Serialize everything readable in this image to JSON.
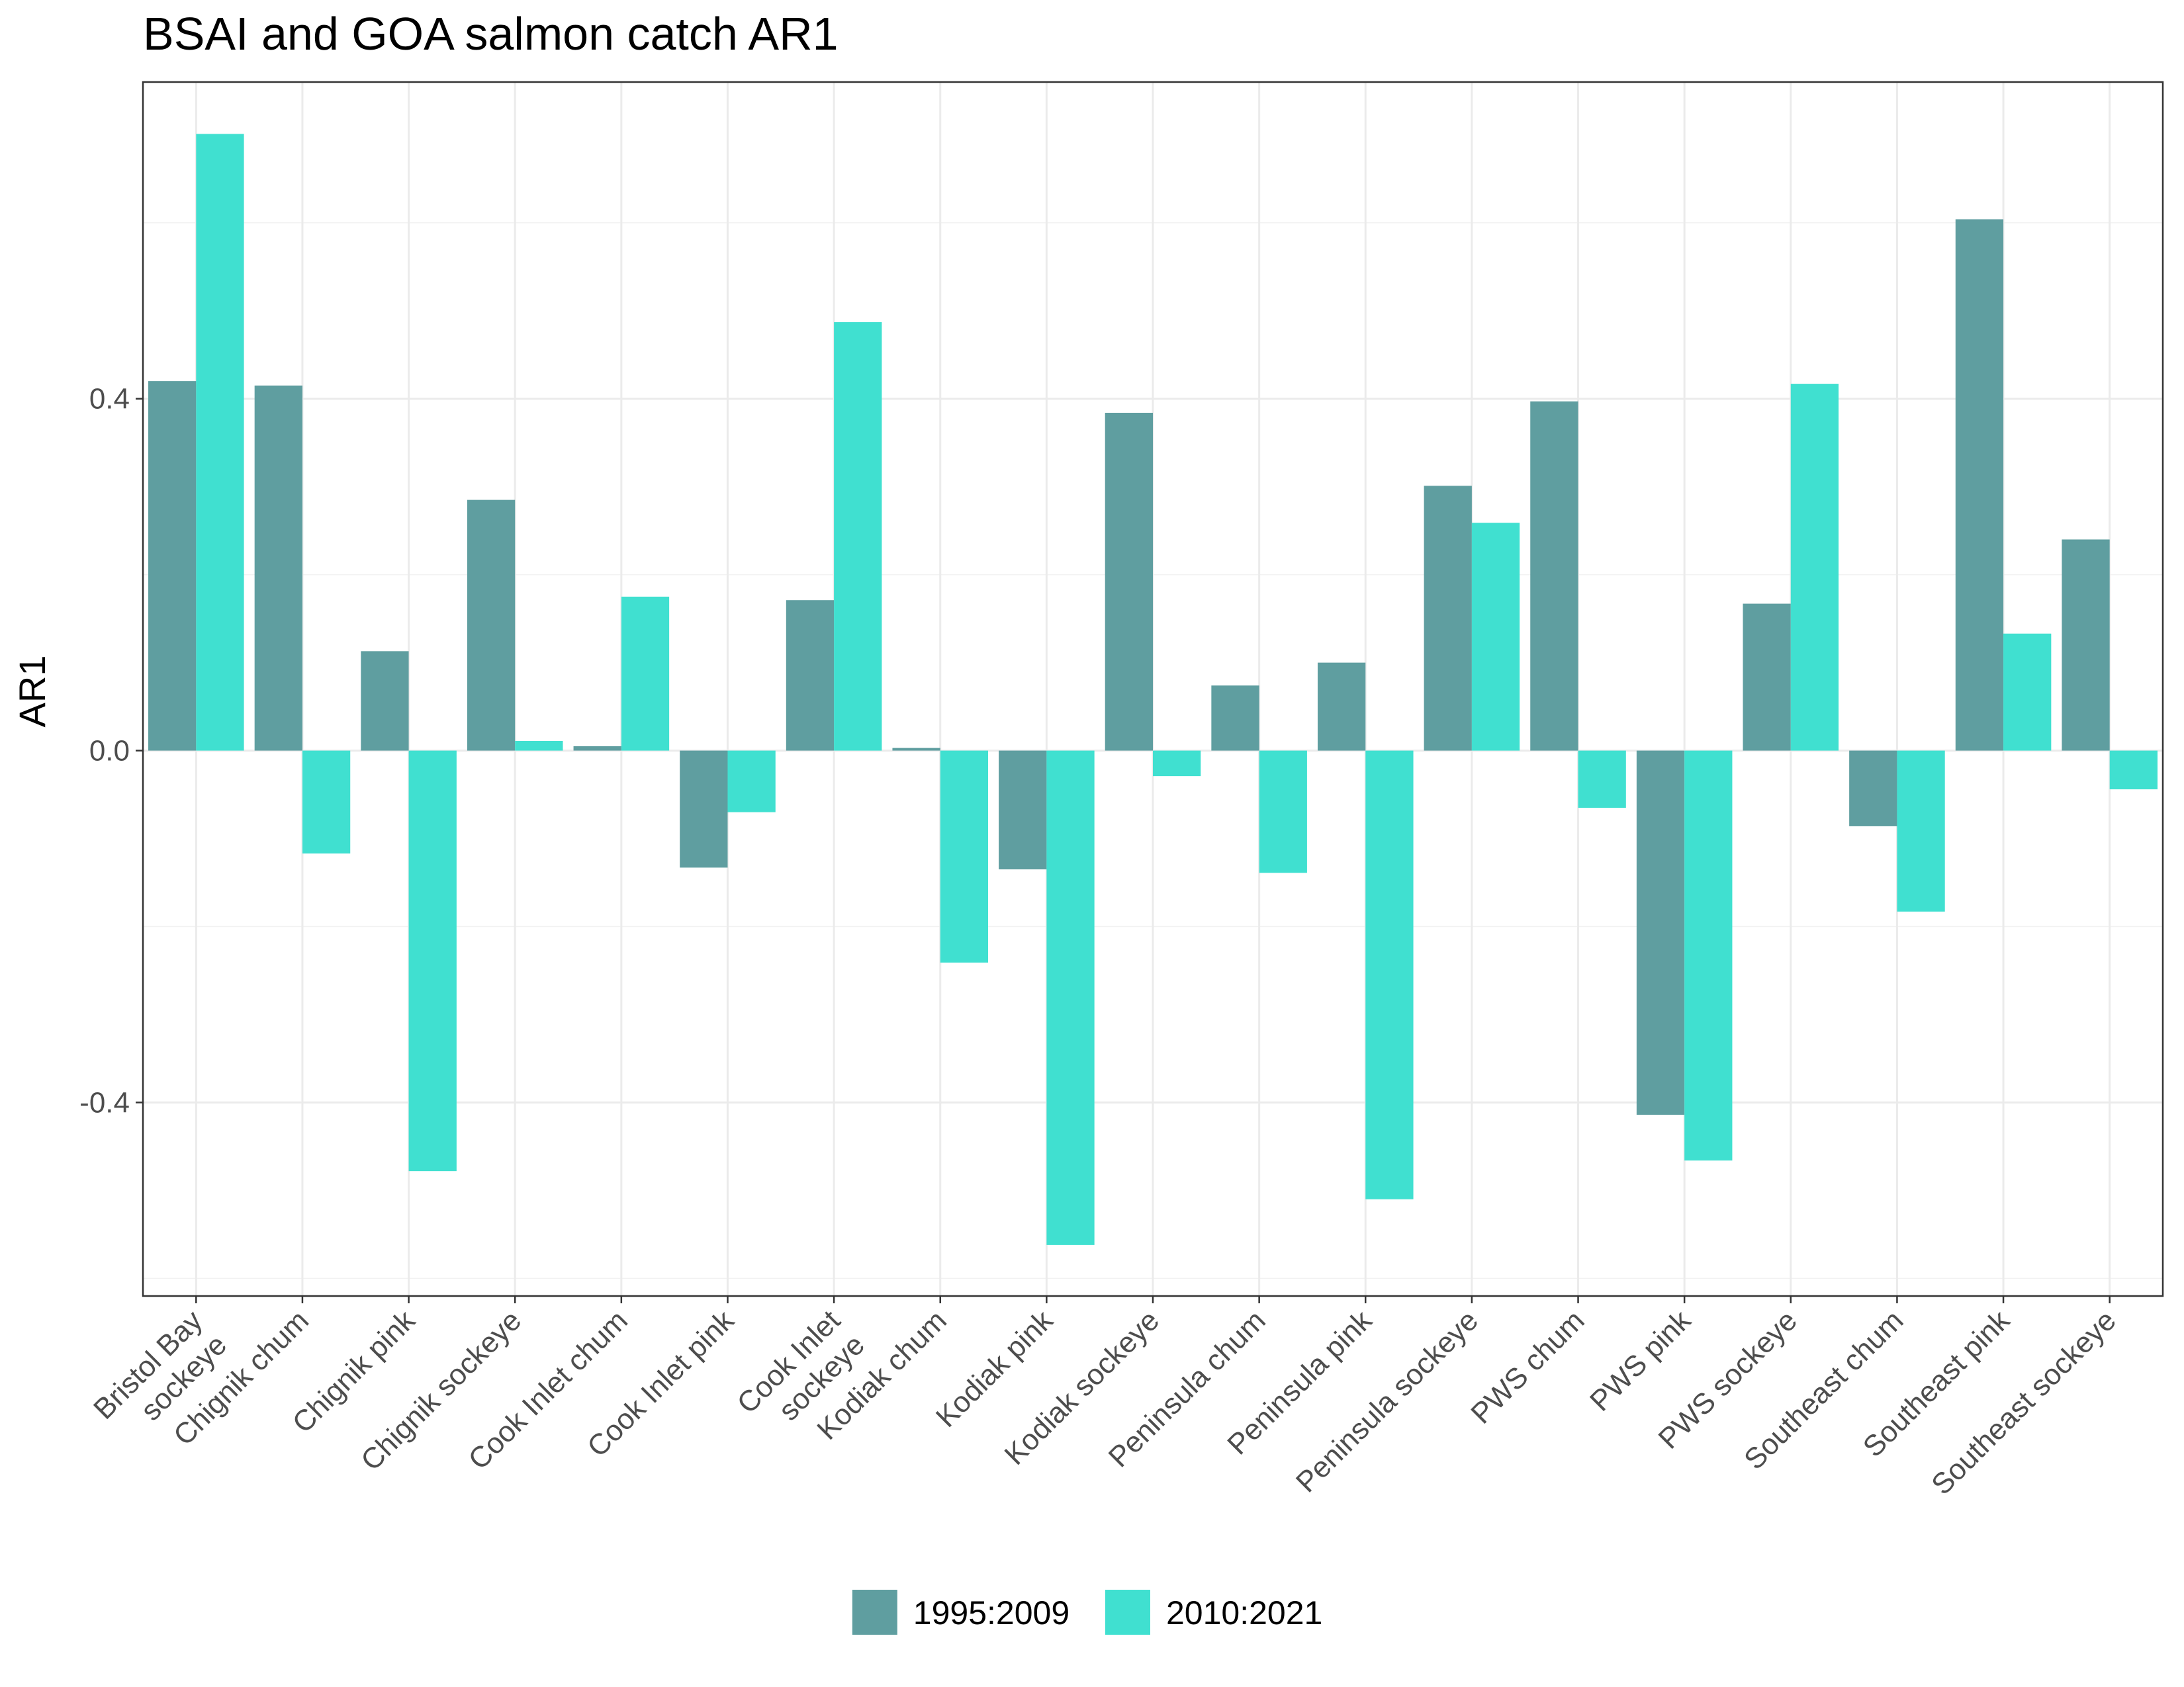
{
  "chart_data": {
    "type": "bar",
    "title": "BSAI and GOA salmon catch AR1",
    "xlabel": "",
    "ylabel": "AR1",
    "ylim": [
      -0.62,
      0.76
    ],
    "y_ticks": [
      -0.4,
      0.0,
      0.4
    ],
    "y_tick_labels": [
      "-0.4",
      "0.0",
      "0.4"
    ],
    "grid": true,
    "legend_position": "bottom",
    "categories": [
      "Bristol Bay sockeye",
      "Chignik chum",
      "Chignik pink",
      "Chignik sockeye",
      "Cook Inlet chum",
      "Cook Inlet pink",
      "Cook Inlet sockeye",
      "Kodiak chum",
      "Kodiak pink",
      "Kodiak sockeye",
      "Peninsula chum",
      "Peninsula pink",
      "Peninsula sockeye",
      "PWS chum",
      "PWS pink",
      "PWS sockeye",
      "Southeast chum",
      "Southeast pink",
      "Southeast sockeye"
    ],
    "category_lines": [
      [
        "Bristol Bay",
        "sockeye"
      ],
      [
        "Chignik chum"
      ],
      [
        "Chignik pink"
      ],
      [
        "Chignik sockeye"
      ],
      [
        "Cook Inlet chum"
      ],
      [
        "Cook Inlet pink"
      ],
      [
        "Cook Inlet",
        "sockeye"
      ],
      [
        "Kodiak chum"
      ],
      [
        "Kodiak pink"
      ],
      [
        "Kodiak sockeye"
      ],
      [
        "Peninsula chum"
      ],
      [
        "Peninsula pink"
      ],
      [
        "Peninsula sockeye"
      ],
      [
        "PWS chum"
      ],
      [
        "PWS pink"
      ],
      [
        "PWS sockeye"
      ],
      [
        "Southeast chum"
      ],
      [
        "Southeast pink"
      ],
      [
        "Southeast sockeye"
      ]
    ],
    "series": [
      {
        "name": "1995:2009",
        "color": "#5f9ea0",
        "values": [
          0.42,
          0.415,
          0.113,
          0.285,
          0.005,
          -0.133,
          0.171,
          0.003,
          -0.135,
          0.384,
          0.074,
          0.1,
          0.301,
          0.397,
          -0.414,
          0.167,
          -0.086,
          0.604,
          0.24
        ]
      },
      {
        "name": "2010:2021",
        "color": "#40e0d0",
        "values": [
          0.701,
          -0.117,
          -0.478,
          0.011,
          0.175,
          -0.07,
          0.487,
          -0.241,
          -0.562,
          -0.029,
          -0.139,
          -0.51,
          0.259,
          -0.065,
          -0.466,
          0.417,
          -0.183,
          0.133,
          -0.044
        ]
      }
    ]
  }
}
